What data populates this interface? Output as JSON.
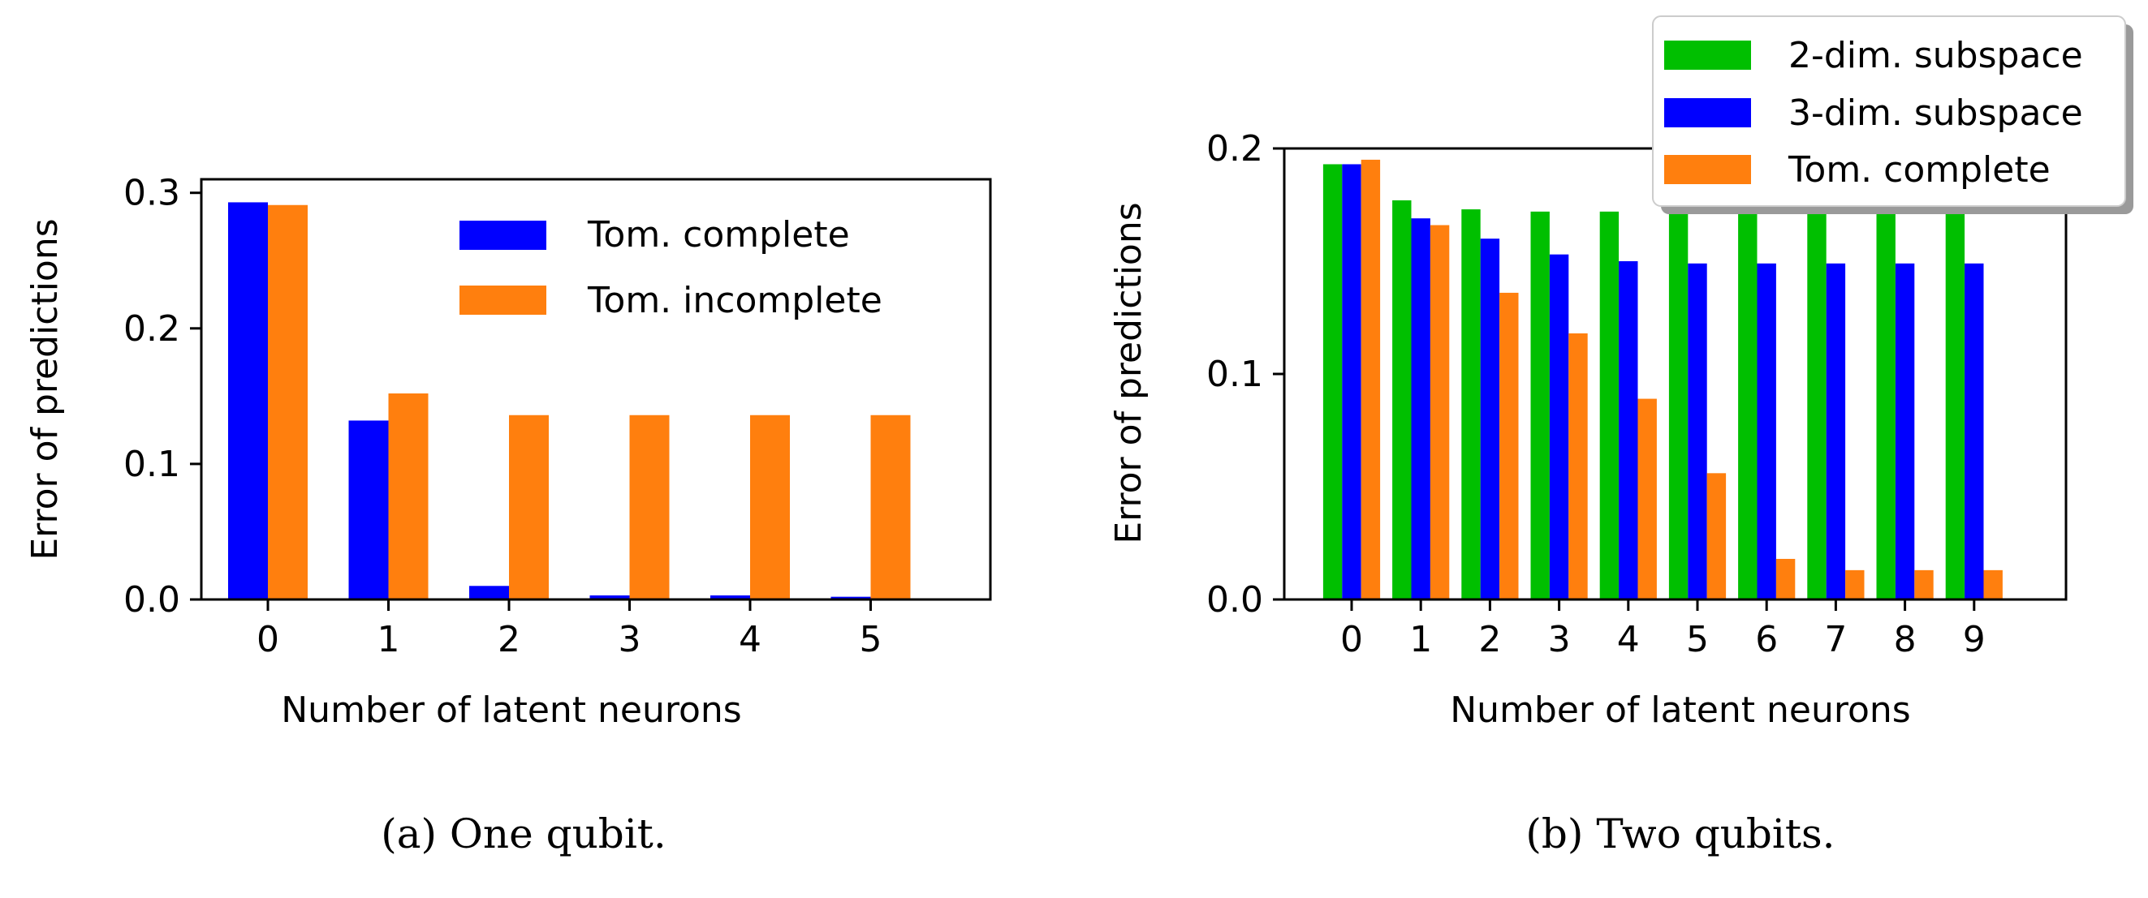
{
  "chart_data": [
    {
      "type": "bar",
      "title": "",
      "xlabel": "Number of latent neurons",
      "ylabel": "Error of predictions",
      "categories": [
        "0",
        "1",
        "2",
        "3",
        "4",
        "5"
      ],
      "ylim": [
        0,
        0.31
      ],
      "yticks": [
        "0.0",
        "0.1",
        "0.2",
        "0.3"
      ],
      "grid": false,
      "legend_position": "upper-right",
      "series": [
        {
          "name": "Tom. complete",
          "color": "#0000ff",
          "values": [
            0.293,
            0.132,
            0.01,
            0.003,
            0.003,
            0.002
          ]
        },
        {
          "name": "Tom. incomplete",
          "color": "#ff7f0e",
          "values": [
            0.291,
            0.152,
            0.136,
            0.136,
            0.136,
            0.136
          ]
        }
      ],
      "caption": "(a) One qubit."
    },
    {
      "type": "bar",
      "title": "",
      "xlabel": "Number of latent neurons",
      "ylabel": "Error of predictions",
      "categories": [
        "0",
        "1",
        "2",
        "3",
        "4",
        "5",
        "6",
        "7",
        "8",
        "9"
      ],
      "ylim": [
        0,
        0.2
      ],
      "yticks": [
        "0.0",
        "0.1",
        "0.2"
      ],
      "grid": false,
      "legend_position": "top-right, outside",
      "series": [
        {
          "name": "2-dim. subspace",
          "color": "#00bf00",
          "values": [
            0.193,
            0.177,
            0.173,
            0.172,
            0.172,
            0.172,
            0.172,
            0.172,
            0.172,
            0.172
          ]
        },
        {
          "name": "3-dim. subspace",
          "color": "#0000ff",
          "values": [
            0.193,
            0.169,
            0.16,
            0.153,
            0.15,
            0.149,
            0.149,
            0.149,
            0.149,
            0.149
          ]
        },
        {
          "name": "Tom. complete",
          "color": "#ff7f0e",
          "values": [
            0.195,
            0.166,
            0.136,
            0.118,
            0.089,
            0.056,
            0.018,
            0.013,
            0.013,
            0.013
          ]
        }
      ],
      "caption": "(b) Two qubits."
    }
  ]
}
